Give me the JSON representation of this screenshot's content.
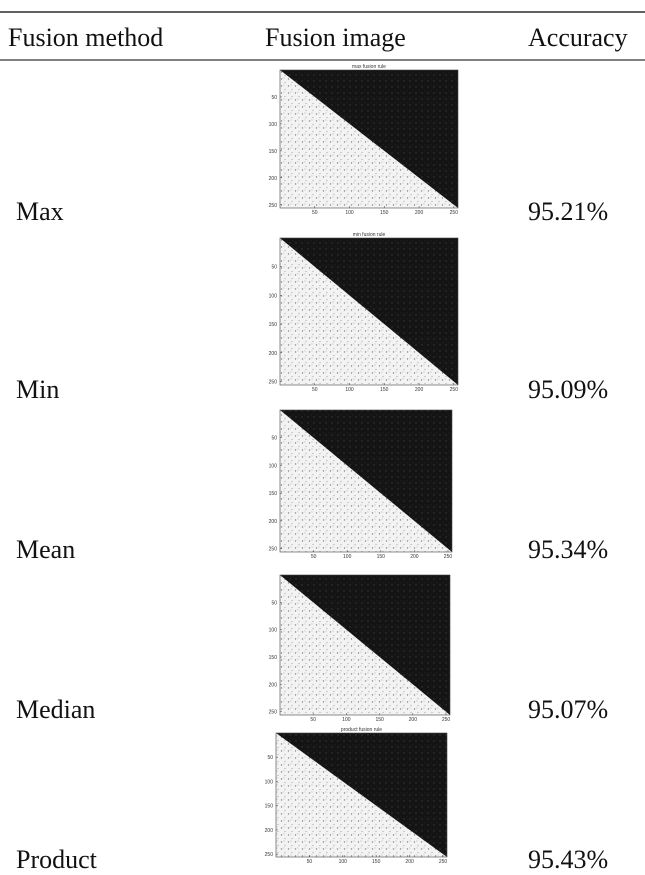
{
  "header": [
    "Fusion method",
    "Fusion image",
    "Accuracy"
  ],
  "axis_ticks": [
    50,
    100,
    150,
    200,
    250
  ],
  "rows": [
    {
      "method": "Max",
      "image_title": "max fusion rule",
      "accuracy": "95.21%"
    },
    {
      "method": "Min",
      "image_title": "min fusion rule",
      "accuracy": "95.09%"
    },
    {
      "method": "Mean",
      "accuracy": "95.34%"
    },
    {
      "method": "Median",
      "accuracy": "95.07%"
    },
    {
      "method": "Product",
      "image_title": "product fusion rule",
      "accuracy": "95.43%"
    }
  ]
}
